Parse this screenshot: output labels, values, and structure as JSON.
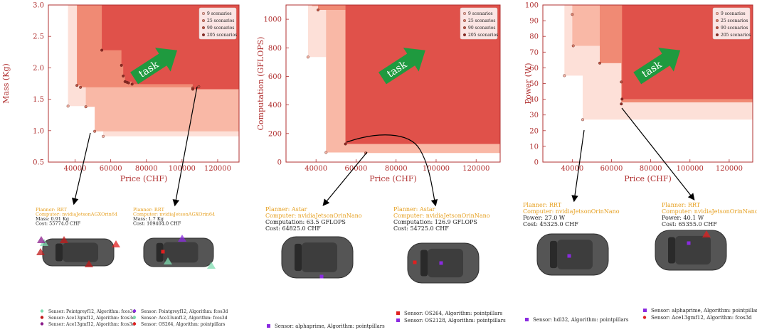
{
  "colors": {
    "axis": "#b03030",
    "area_9": "#fde0d8",
    "area_25": "#f9b8a6",
    "area_90": "#f08a74",
    "area_205": "#e0514a",
    "point_9": "#f2b6a8",
    "point_25": "#d9826f",
    "point_90": "#b95444",
    "point_205": "#8c2a24",
    "arrow_green": "#1f9a3f",
    "planner_text": "#e6a021",
    "car_body": "#555555",
    "car_roof": "#3d3d3d"
  },
  "legend_labels": [
    "9 scenarios",
    "25 scenarios",
    "90 scenarios",
    "205 scenarios"
  ],
  "task_label": "task",
  "chart_data": [
    {
      "type": "scatter",
      "title": "",
      "xlabel": "Price (CHF)",
      "ylabel": "Mass (Kg)",
      "xlim": [
        25000,
        132000
      ],
      "ylim": [
        0.5,
        3.0
      ],
      "xticks": [
        40000,
        60000,
        80000,
        100000,
        120000
      ],
      "yticks": [
        0.5,
        1.0,
        1.5,
        2.0,
        2.5,
        3.0
      ],
      "xtick_labels": [
        "40000",
        "60000",
        "80000",
        "100000",
        "120000"
      ],
      "ytick_labels": [
        "0.5",
        "1.0",
        "1.5",
        "2.0",
        "2.5",
        "3.0"
      ],
      "legend_position": "top-right",
      "grid": false,
      "series": [
        {
          "name": "9 scenarios",
          "points": [
            [
              36000,
              1.39
            ],
            [
              55774,
              0.91
            ]
          ]
        },
        {
          "name": "25 scenarios",
          "points": [
            [
              51000,
              0.99
            ],
            [
              46000,
              1.38
            ]
          ]
        },
        {
          "name": "90 scenarios",
          "points": [
            [
              41000,
              1.72
            ],
            [
              43000,
              1.69
            ],
            [
              106000,
              1.68
            ],
            [
              109404,
              1.7
            ]
          ]
        },
        {
          "name": "205 scenarios",
          "points": [
            [
              55000,
              2.28
            ],
            [
              66000,
              2.04
            ],
            [
              67000,
              1.87
            ],
            [
              68000,
              1.78
            ],
            [
              69000,
              1.77
            ],
            [
              70000,
              1.76
            ],
            [
              72000,
              1.74
            ],
            [
              106000,
              1.66
            ]
          ]
        }
      ],
      "fronts": [
        {
          "name": "9 scenarios",
          "steps": [
            [
              36000,
              1.39
            ],
            [
              55774,
              0.91
            ]
          ]
        },
        {
          "name": "25 scenarios",
          "steps": [
            [
              46000,
              1.38
            ],
            [
              51000,
              0.99
            ]
          ]
        },
        {
          "name": "90 scenarios",
          "steps": [
            [
              41000,
              1.72
            ],
            [
              43000,
              1.69
            ],
            [
              109404,
              1.7
            ]
          ]
        },
        {
          "name": "205 scenarios",
          "steps": [
            [
              55000,
              2.28
            ],
            [
              66000,
              2.04
            ],
            [
              67000,
              1.87
            ],
            [
              68000,
              1.78
            ],
            [
              72000,
              1.74
            ],
            [
              106000,
              1.66
            ]
          ]
        }
      ]
    },
    {
      "type": "scatter",
      "title": "",
      "xlabel": "Price (CHF)",
      "ylabel": "Computation (GFLOPS)",
      "xlim": [
        25000,
        132000
      ],
      "ylim": [
        0,
        1100
      ],
      "xticks": [
        40000,
        60000,
        80000,
        100000,
        120000
      ],
      "yticks": [
        0,
        200,
        400,
        600,
        800,
        1000
      ],
      "xtick_labels": [
        "40000",
        "60000",
        "80000",
        "100000",
        "120000"
      ],
      "ytick_labels": [
        "0",
        "200",
        "400",
        "600",
        "800",
        "1000"
      ],
      "legend_position": "top-right",
      "grid": false,
      "series": [
        {
          "name": "9 scenarios",
          "points": [
            [
              36000,
              735
            ],
            [
              45000,
              67
            ]
          ]
        },
        {
          "name": "25 scenarios",
          "points": [
            [
              64825,
              63.5
            ]
          ]
        },
        {
          "name": "90 scenarios",
          "points": [
            [
              41000,
              1065
            ]
          ]
        },
        {
          "name": "205 scenarios",
          "points": [
            [
              54725,
              126.9
            ]
          ]
        }
      ],
      "fronts": [
        {
          "name": "9 scenarios",
          "steps": [
            [
              36000,
              735
            ],
            [
              45000,
              67
            ]
          ]
        },
        {
          "name": "25 scenarios",
          "steps": [
            [
              38000,
              1090
            ],
            [
              45000,
              67
            ],
            [
              64825,
              63.5
            ]
          ]
        },
        {
          "name": "90 scenarios",
          "steps": [
            [
              41000,
              1065
            ],
            [
              54725,
              126.9
            ]
          ]
        },
        {
          "name": "205 scenarios",
          "steps": [
            [
              54725,
              126.9
            ]
          ]
        }
      ]
    },
    {
      "type": "scatter",
      "title": "",
      "xlabel": "Price (CHF)",
      "ylabel": "Power (W)",
      "xlim": [
        25000,
        132000
      ],
      "ylim": [
        0,
        100
      ],
      "xticks": [
        40000,
        60000,
        80000,
        100000,
        120000
      ],
      "yticks": [
        0,
        10,
        20,
        30,
        40,
        50,
        60,
        70,
        80,
        90,
        100
      ],
      "xtick_labels": [
        "40000",
        "60000",
        "80000",
        "100000",
        "120000"
      ],
      "ytick_labels": [
        "0",
        "10",
        "20",
        "30",
        "40",
        "50",
        "60",
        "70",
        "80",
        "90",
        "100"
      ],
      "legend_position": "top-right",
      "grid": false,
      "series": [
        {
          "name": "9 scenarios",
          "points": [
            [
              36000,
              55
            ],
            [
              45325,
              27
            ]
          ]
        },
        {
          "name": "25 scenarios",
          "points": [
            [
              40000,
              94
            ],
            [
              40500,
              74
            ]
          ]
        },
        {
          "name": "90 scenarios",
          "points": [
            [
              54000,
              63
            ],
            [
              65000,
              51
            ]
          ]
        },
        {
          "name": "205 scenarios",
          "points": [
            [
              65355,
              40.1
            ],
            [
              65000,
              37
            ]
          ]
        }
      ],
      "fronts": [
        {
          "name": "9 scenarios",
          "steps": [
            [
              36000,
              55
            ],
            [
              45325,
              27
            ]
          ]
        },
        {
          "name": "25 scenarios",
          "steps": [
            [
              40000,
              74
            ],
            [
              54000,
              63
            ]
          ]
        },
        {
          "name": "90 scenarios",
          "steps": [
            [
              54000,
              63
            ],
            [
              65000,
              38
            ]
          ]
        },
        {
          "name": "205 scenarios",
          "steps": [
            [
              45000,
              100
            ],
            [
              65355,
              40.1
            ]
          ]
        }
      ]
    }
  ],
  "examples": [
    {
      "planner": "Planner: RRT",
      "computer": "Computer: nvidiaJetsonAGXOrin64",
      "metric": "Mass: 0.91 Kg",
      "cost": "Cost: 55774.0 CHF"
    },
    {
      "planner": "Planner: RRT",
      "computer": "Computer: nvidiaJetsonAGXOrin64",
      "metric": "Mass: 1.7 Kg",
      "cost": "Cost: 109404.0 CHF"
    },
    {
      "planner": "Planner: Astar",
      "computer": "Computer: nvidiaJetsonOrinNano",
      "metric": "Computation: 63.5 GFLOPS",
      "cost": "Cost: 64825.0 CHF"
    },
    {
      "planner": "Planner: Astar",
      "computer": "Computer: nvidiaJetsonOrinNano",
      "metric": "Computation: 126.9 GFLOPS",
      "cost": "Cost: 54725.0 CHF"
    },
    {
      "planner": "Planner: RRT",
      "computer": "Computer: nvidiaJetsonOrinNano",
      "metric": "Power: 27.0 W",
      "cost": "Cost: 45325.0 CHF"
    },
    {
      "planner": "Planner: RRT",
      "computer": "Computer: nvidiaJetsonOrinNano",
      "metric": "Power: 40.1 W",
      "cost": "Cost: 65355.0 CHF"
    }
  ],
  "sensor_legends": {
    "mass_left": [
      {
        "text": "Sensor: Pointgreyf12, Algorithm: fcos3d",
        "color": "#7fdcb0"
      },
      {
        "text": "Sensor: Ace13gmf12, Algorithm: fcos3d",
        "color": "#c01818"
      },
      {
        "text": "Sensor: Ace13gmf12, Algorithm: fcos3d",
        "color": "#8a1a8a"
      }
    ],
    "mass_right": [
      {
        "text": "Sensor: Pointgreyf12, Algorithm: fcos3d",
        "color": "#8a2ae0"
      },
      {
        "text": "Sensor: Ace13umf12, Algorithm: fcos3d",
        "color": "#7fdcb0"
      },
      {
        "text": "Sensor: OS264, Algorithm: pointpillars",
        "color": "#e02020"
      }
    ],
    "comp_left": [
      {
        "text": "Sensor: alphaprime, Algorithm: pointpillars",
        "color": "#8a2ae0"
      }
    ],
    "comp_right": [
      {
        "text": "Sensor: OS264, Algorithm: pointpillars",
        "color": "#e02020"
      },
      {
        "text": "Sensor: OS2128, Algorithm: pointpillars",
        "color": "#8a2ae0"
      }
    ],
    "power_left": [
      {
        "text": "Sensor: hdl32, Algorithm: pointpillars",
        "color": "#8a2ae0"
      }
    ],
    "power_right": [
      {
        "text": "Sensor: alphaprime, Algorithm: pointpillars",
        "color": "#8a2ae0"
      },
      {
        "text": "Sensor: Ace13gmf12, Algorithm: fcos3d",
        "color": "#e02020"
      }
    ]
  }
}
